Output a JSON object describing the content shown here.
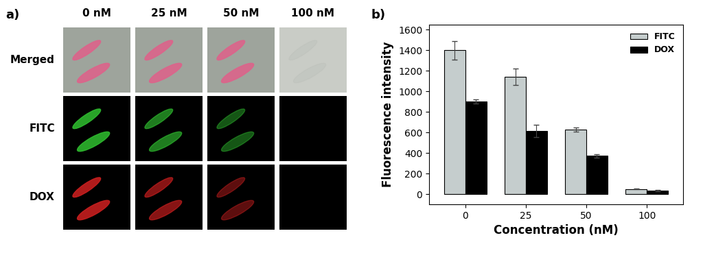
{
  "panel_a": {
    "label": "a)",
    "columns": [
      "0 nM",
      "25 nM",
      "50 nM",
      "100 nM"
    ],
    "rows": [
      "Merged",
      "FITC",
      "DOX"
    ]
  },
  "chart_data": {
    "type": "bar",
    "annotations": [
      {
        "text": "b)"
      }
    ],
    "x_label": "Concentration (nM)",
    "y_label": "Fluorescence intensity",
    "categories": [
      "0",
      "25",
      "50",
      "100"
    ],
    "series": [
      {
        "name": "FITC",
        "color": "#c5cdcd",
        "values": [
          1400,
          1145,
          630,
          50
        ],
        "error": [
          90,
          80,
          20,
          5
        ]
      },
      {
        "name": "DOX",
        "color": "#000000",
        "values": [
          900,
          612,
          372,
          35
        ],
        "error": [
          20,
          60,
          18,
          8
        ]
      }
    ],
    "ylim": [
      -100,
      1650
    ],
    "yticks": [
      0,
      200,
      400,
      600,
      800,
      1000,
      1200,
      1400,
      1600
    ],
    "legend": "upper right",
    "grid": false
  }
}
